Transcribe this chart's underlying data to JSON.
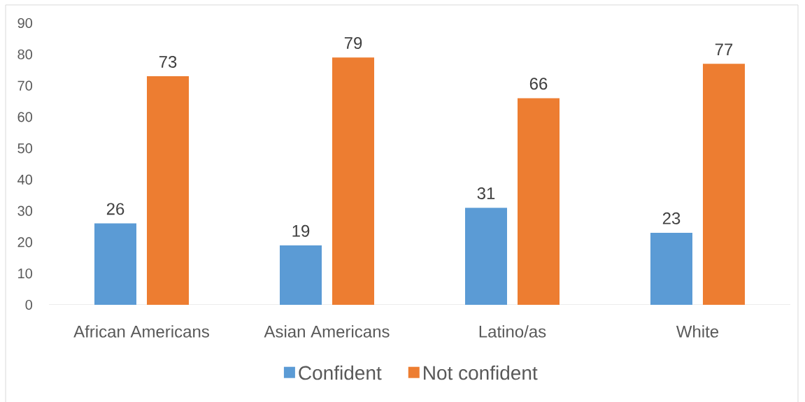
{
  "chart_data": {
    "type": "bar",
    "categories": [
      "African Americans",
      "Asian Americans",
      "Latino/as",
      "White"
    ],
    "series": [
      {
        "name": "Confident",
        "color": "#5b9bd5",
        "values": [
          26,
          19,
          31,
          23
        ]
      },
      {
        "name": "Not confident",
        "color": "#ed7d31",
        "values": [
          73,
          79,
          66,
          77
        ]
      }
    ],
    "ylim": [
      0,
      90
    ],
    "yticks": [
      0,
      10,
      20,
      30,
      40,
      50,
      60,
      70,
      80,
      90
    ],
    "data_labels": true,
    "legend": "bottom"
  }
}
